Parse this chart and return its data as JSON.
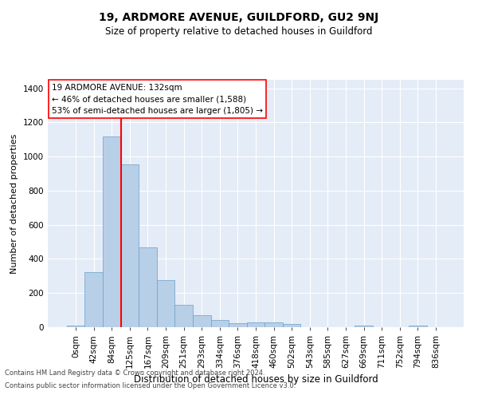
{
  "title": "19, ARDMORE AVENUE, GUILDFORD, GU2 9NJ",
  "subtitle": "Size of property relative to detached houses in Guildford",
  "xlabel": "Distribution of detached houses by size in Guildford",
  "ylabel": "Number of detached properties",
  "footnote1": "Contains HM Land Registry data © Crown copyright and database right 2024.",
  "footnote2": "Contains public sector information licensed under the Open Government Licence v3.0.",
  "bar_labels": [
    "0sqm",
    "42sqm",
    "84sqm",
    "125sqm",
    "167sqm",
    "209sqm",
    "251sqm",
    "293sqm",
    "334sqm",
    "376sqm",
    "418sqm",
    "460sqm",
    "502sqm",
    "543sqm",
    "585sqm",
    "627sqm",
    "669sqm",
    "711sqm",
    "752sqm",
    "794sqm",
    "836sqm"
  ],
  "bar_values": [
    10,
    325,
    1120,
    955,
    470,
    275,
    130,
    70,
    42,
    23,
    27,
    27,
    18,
    0,
    0,
    0,
    10,
    0,
    0,
    10,
    0
  ],
  "bar_color": "#b8cfe8",
  "bar_edge_color": "#6a9fc8",
  "background_color": "#e4ecf7",
  "grid_color": "#ffffff",
  "vline_color": "red",
  "vline_x": 2.5,
  "annotation_text": "19 ARDMORE AVENUE: 132sqm\n← 46% of detached houses are smaller (1,588)\n53% of semi-detached houses are larger (1,805) →",
  "annotation_box_color": "white",
  "annotation_box_edge": "red",
  "ylim": [
    0,
    1450
  ],
  "yticks": [
    0,
    200,
    400,
    600,
    800,
    1000,
    1200,
    1400
  ],
  "title_fontsize": 10,
  "subtitle_fontsize": 8.5,
  "ylabel_fontsize": 8,
  "xlabel_fontsize": 8.5,
  "tick_fontsize": 7.5,
  "annot_fontsize": 7.5,
  "footnote_fontsize": 6
}
